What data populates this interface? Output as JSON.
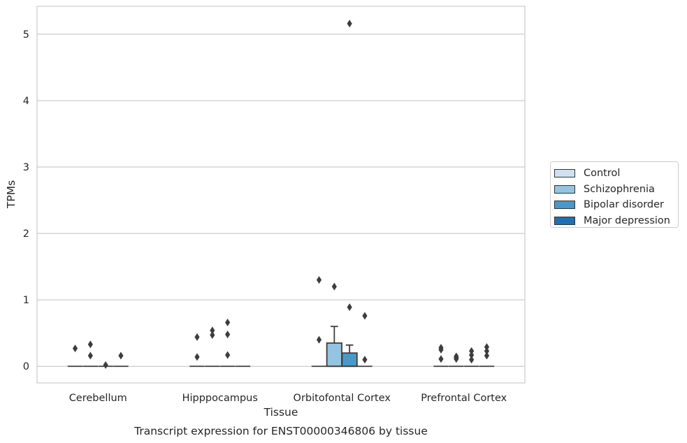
{
  "chart_data": {
    "type": "boxplot",
    "title": "Transcript expression for ENST00000346806 by tissue",
    "xlabel": "Tissue",
    "ylabel": "TPMs",
    "ylim": [
      -0.25,
      5.42
    ],
    "yticks": [
      "0",
      "1",
      "2",
      "3",
      "4",
      "5"
    ],
    "grid": true,
    "legend_position": "right",
    "categories": [
      "Cerebellum",
      "Hipppocampus",
      "Orbitofontal Cortex",
      "Prefrontal Cortex"
    ],
    "series": [
      {
        "name": "Control",
        "color": "#d0e1f2",
        "boxes": [
          {
            "q1": 0,
            "median": 0,
            "q3": 0,
            "whisker_low": 0,
            "whisker_high": 0,
            "outliers": [
              0.27
            ]
          },
          {
            "q1": 0,
            "median": 0,
            "q3": 0,
            "whisker_low": 0,
            "whisker_high": 0,
            "outliers": [
              0.44,
              0.14
            ]
          },
          {
            "q1": 0,
            "median": 0,
            "q3": 0,
            "whisker_low": 0,
            "whisker_high": 0,
            "outliers": [
              1.3,
              0.4
            ]
          },
          {
            "q1": 0,
            "median": 0,
            "q3": 0,
            "whisker_low": 0,
            "whisker_high": 0,
            "outliers": [
              0.28,
              0.25,
              0.11
            ]
          }
        ]
      },
      {
        "name": "Schizophrenia",
        "color": "#94c4df",
        "boxes": [
          {
            "q1": 0,
            "median": 0,
            "q3": 0,
            "whisker_low": 0,
            "whisker_high": 0,
            "outliers": [
              0.33,
              0.16
            ]
          },
          {
            "q1": 0,
            "median": 0,
            "q3": 0,
            "whisker_low": 0,
            "whisker_high": 0,
            "outliers": [
              0.54,
              0.47
            ]
          },
          {
            "q1": 0,
            "median": 0,
            "q3": 0.35,
            "whisker_low": 0,
            "whisker_high": 0.6,
            "outliers": [
              1.2
            ]
          },
          {
            "q1": 0,
            "median": 0,
            "q3": 0,
            "whisker_low": 0,
            "whisker_high": 0,
            "outliers": [
              0.15,
              0.13,
              0.11
            ]
          }
        ]
      },
      {
        "name": "Bipolar disorder",
        "color": "#4a98c9",
        "boxes": [
          {
            "q1": 0,
            "median": 0,
            "q3": 0,
            "whisker_low": 0,
            "whisker_high": 0,
            "outliers": [
              0.02
            ]
          },
          {
            "q1": 0,
            "median": 0,
            "q3": 0,
            "whisker_low": 0,
            "whisker_high": 0,
            "outliers": [
              0.66,
              0.48,
              0.17
            ]
          },
          {
            "q1": 0,
            "median": 0,
            "q3": 0.2,
            "whisker_low": 0,
            "whisker_high": 0.32,
            "outliers": [
              5.16,
              0.89
            ]
          },
          {
            "q1": 0,
            "median": 0,
            "q3": 0,
            "whisker_low": 0,
            "whisker_high": 0,
            "outliers": [
              0.23,
              0.17,
              0.1
            ]
          }
        ]
      },
      {
        "name": "Major depression",
        "color": "#2070b4",
        "boxes": [
          {
            "q1": 0,
            "median": 0,
            "q3": 0,
            "whisker_low": 0,
            "whisker_high": 0,
            "outliers": [
              0.16
            ]
          },
          {
            "q1": 0,
            "median": 0,
            "q3": 0,
            "whisker_low": 0,
            "whisker_high": 0,
            "outliers": []
          },
          {
            "q1": 0,
            "median": 0,
            "q3": 0,
            "whisker_low": 0,
            "whisker_high": 0,
            "outliers": [
              0.76,
              0.1
            ]
          },
          {
            "q1": 0,
            "median": 0,
            "q3": 0,
            "whisker_low": 0,
            "whisker_high": 0,
            "outliers": [
              0.29,
              0.23,
              0.16
            ]
          }
        ]
      }
    ]
  }
}
